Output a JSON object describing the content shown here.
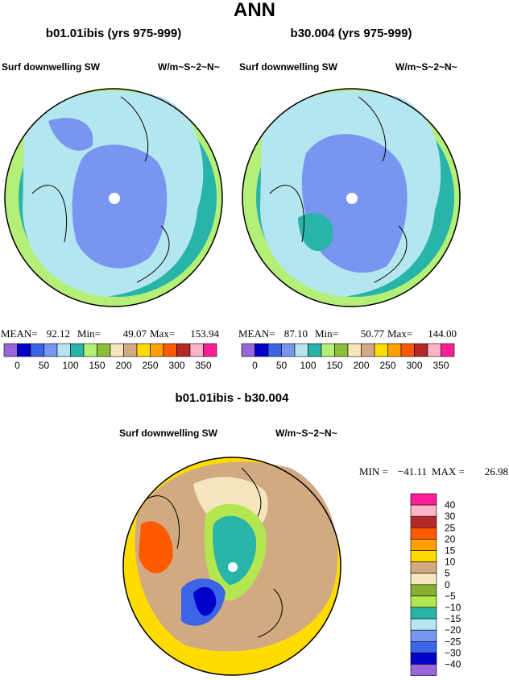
{
  "title": "ANN",
  "panels": [
    {
      "title": "b01.01ibis (yrs 975-999)",
      "left_label": "Surf downwelling SW",
      "right_label": "W/m~S~2~N~",
      "stats": [
        {
          "label": "MEAN=",
          "value": "92.12"
        },
        {
          "label": "Min=",
          "value": "49.07"
        },
        {
          "label": "Max=",
          "value": "153.94"
        }
      ],
      "colorbar": {
        "colors": [
          "#9966dd",
          "#0000c8",
          "#3c64e6",
          "#7896f0",
          "#b4e6f0",
          "#28b4a8",
          "#b4f078",
          "#8cbe3c",
          "#f5e6be",
          "#d2aa82",
          "#ffdc00",
          "#ffa000",
          "#ff5a00",
          "#b42828",
          "#ffb4c8",
          "#ff1e96"
        ],
        "labels": [
          "0",
          "50",
          "100",
          "150",
          "200",
          "250",
          "300",
          "350"
        ]
      }
    },
    {
      "title": "b30.004 (yrs 975-999)",
      "left_label": "Surf downwelling SW",
      "right_label": "W/m~S~2~N~",
      "stats": [
        {
          "label": "MEAN=",
          "value": "87.10"
        },
        {
          "label": "Min=",
          "value": "50.77"
        },
        {
          "label": "Max=",
          "value": "144.00"
        }
      ],
      "colorbar": {
        "colors": [
          "#9966dd",
          "#0000c8",
          "#3c64e6",
          "#7896f0",
          "#b4e6f0",
          "#28b4a8",
          "#b4f078",
          "#8cbe3c",
          "#f5e6be",
          "#d2aa82",
          "#ffdc00",
          "#ffa000",
          "#ff5a00",
          "#b42828",
          "#ffb4c8",
          "#ff1e96"
        ],
        "labels": [
          "0",
          "50",
          "100",
          "150",
          "200",
          "250",
          "300",
          "350"
        ]
      }
    }
  ],
  "diff": {
    "title": "b01.01ibis - b30.004",
    "left_label": "Surf downwelling SW",
    "right_label": "W/m~S~2~N~",
    "stats": [
      {
        "label": "MIN =",
        "value": "−41.11"
      },
      {
        "label": "MAX =",
        "value": "26.98"
      }
    ],
    "colorbar": {
      "colors": [
        "#ff1e96",
        "#ffb4c8",
        "#b42828",
        "#ff5a00",
        "#ffa000",
        "#ffdc00",
        "#d2aa82",
        "#f5e6be",
        "#88b030",
        "#b4e650",
        "#28b4a8",
        "#b4e6f0",
        "#7896f0",
        "#3c64e6",
        "#0000c8",
        "#9966dd"
      ],
      "labels": [
        "40",
        "30",
        "25",
        "20",
        "15",
        "10",
        "5",
        "0",
        "−5",
        "−10",
        "−15",
        "−20",
        "−25",
        "−30",
        "−40"
      ]
    }
  }
}
